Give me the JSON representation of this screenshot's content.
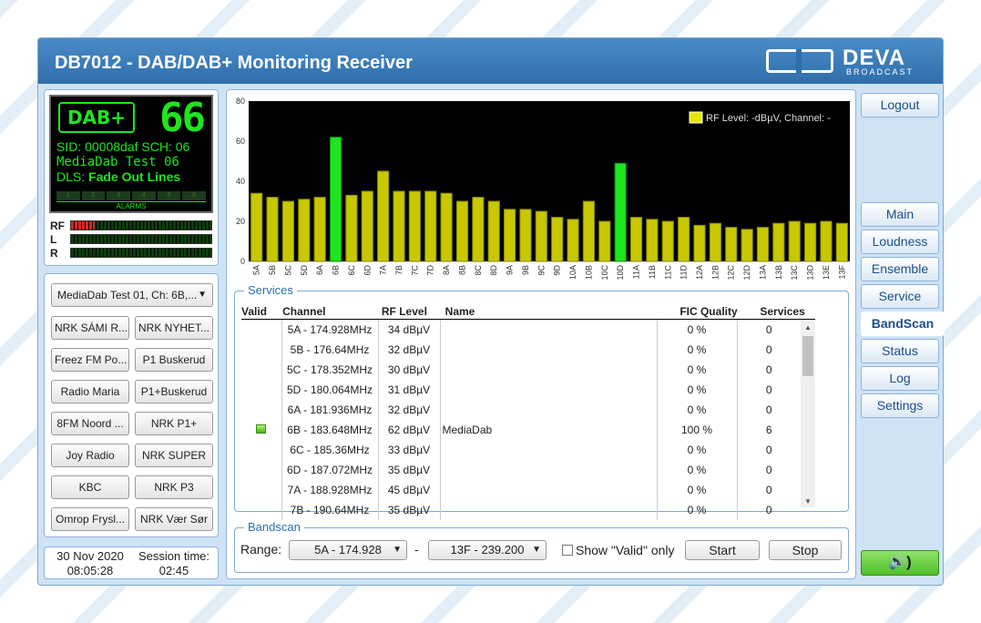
{
  "app": {
    "title": "DB7012 - DAB/DAB+ Monitoring Receiver",
    "logo_name": "DEVA",
    "logo_sub": "BROADCAST"
  },
  "display": {
    "dab_logo": "DAB+",
    "channel_number": "66",
    "sid_line": "SID: 00008daf   SCH: 06",
    "station_name": "MediaDab Test 06",
    "dls_label": "DLS:",
    "dls_text": "Fade Out Lines",
    "alarm_cells": [
      "1",
      "2",
      "3",
      "4",
      "5",
      "6"
    ],
    "alarms_label": "ALARMS"
  },
  "meters": [
    {
      "label": "RF",
      "level": 0.17,
      "color": "red"
    },
    {
      "label": "L",
      "level": 0.0,
      "color": "green"
    },
    {
      "label": "R",
      "level": 0.0,
      "color": "green"
    }
  ],
  "services_panel": {
    "selected": "MediaDab Test 01, Ch: 6B,...",
    "buttons": [
      "NRK SÁMI R...",
      "NRK NYHET...",
      "Freez FM Po...",
      "P1 Buskerud",
      "Radio Maria",
      "P1+Buskerud",
      "8FM Noord ...",
      "NRK P1+",
      "Joy Radio",
      "NRK SUPER",
      "KBC",
      "NRK P3",
      "Omrop Frysl...",
      "NRK Vær Sør"
    ]
  },
  "clock": {
    "date": "30 Nov 2020",
    "time": "08:05:28",
    "session_label": "Session time:",
    "session_time": "02:45"
  },
  "chart_data": {
    "type": "bar",
    "legend": "RF Level: -dBµV, Channel: -",
    "ylim": [
      0,
      80
    ],
    "yticks": [
      0,
      20,
      40,
      60,
      80
    ],
    "categories": [
      "5A",
      "5B",
      "5C",
      "5D",
      "6A",
      "6B",
      "6C",
      "6D",
      "7A",
      "7B",
      "7C",
      "7D",
      "8A",
      "8B",
      "8C",
      "8D",
      "9A",
      "9B",
      "9C",
      "9D",
      "10A",
      "10B",
      "10C",
      "10D",
      "11A",
      "11B",
      "11C",
      "11D",
      "12A",
      "12B",
      "12C",
      "12D",
      "13A",
      "13B",
      "13C",
      "13D",
      "13E",
      "13F"
    ],
    "values": [
      34,
      32,
      30,
      31,
      32,
      62,
      33,
      35,
      45,
      35,
      35,
      35,
      34,
      30,
      32,
      30,
      26,
      26,
      25,
      22,
      21,
      30,
      20,
      49,
      22,
      21,
      20,
      22,
      18,
      19,
      17,
      16,
      17,
      19,
      20,
      19,
      20,
      19
    ],
    "highlight": [
      "6B",
      "10D"
    ],
    "colors": {
      "normal": "#c8c800",
      "highlight": "#1ee61e",
      "background": "#000000"
    }
  },
  "services_table": {
    "legend": "Services",
    "headers": [
      "Valid",
      "Channel",
      "RF Level",
      "Name",
      "FIC Quality",
      "Services"
    ],
    "rows": [
      {
        "valid": false,
        "channel": "5A - 174.928MHz",
        "rf": "34 dBµV",
        "name": "",
        "fic": "0 %",
        "services": "0"
      },
      {
        "valid": false,
        "channel": "5B - 176.64MHz",
        "rf": "32 dBµV",
        "name": "",
        "fic": "0 %",
        "services": "0"
      },
      {
        "valid": false,
        "channel": "5C - 178.352MHz",
        "rf": "30 dBµV",
        "name": "",
        "fic": "0 %",
        "services": "0"
      },
      {
        "valid": false,
        "channel": "5D - 180.064MHz",
        "rf": "31 dBµV",
        "name": "",
        "fic": "0 %",
        "services": "0"
      },
      {
        "valid": false,
        "channel": "6A - 181.936MHz",
        "rf": "32 dBµV",
        "name": "",
        "fic": "0 %",
        "services": "0"
      },
      {
        "valid": true,
        "channel": "6B - 183.648MHz",
        "rf": "62 dBµV",
        "name": "MediaDab",
        "fic": "100 %",
        "services": "6"
      },
      {
        "valid": false,
        "channel": "6C - 185.36MHz",
        "rf": "33 dBµV",
        "name": "",
        "fic": "0 %",
        "services": "0"
      },
      {
        "valid": false,
        "channel": "6D - 187.072MHz",
        "rf": "35 dBµV",
        "name": "",
        "fic": "0 %",
        "services": "0"
      },
      {
        "valid": false,
        "channel": "7A - 188.928MHz",
        "rf": "45 dBµV",
        "name": "",
        "fic": "0 %",
        "services": "0"
      },
      {
        "valid": false,
        "channel": "7B - 190.64MHz",
        "rf": "35 dBµV",
        "name": "",
        "fic": "0 %",
        "services": "0"
      }
    ]
  },
  "bandscan": {
    "legend": "Bandscan",
    "range_label": "Range:",
    "from": "5A - 174.928",
    "separator": "-",
    "to": "13F - 239.200",
    "show_valid_label": "Show \"Valid\" only",
    "start_label": "Start",
    "stop_label": "Stop"
  },
  "nav": {
    "logout": "Logout",
    "items": [
      "Main",
      "Loudness",
      "Ensemble",
      "Service",
      "BandScan",
      "Status",
      "Log",
      "Settings"
    ],
    "active": "BandScan",
    "sound": "🔊)"
  }
}
